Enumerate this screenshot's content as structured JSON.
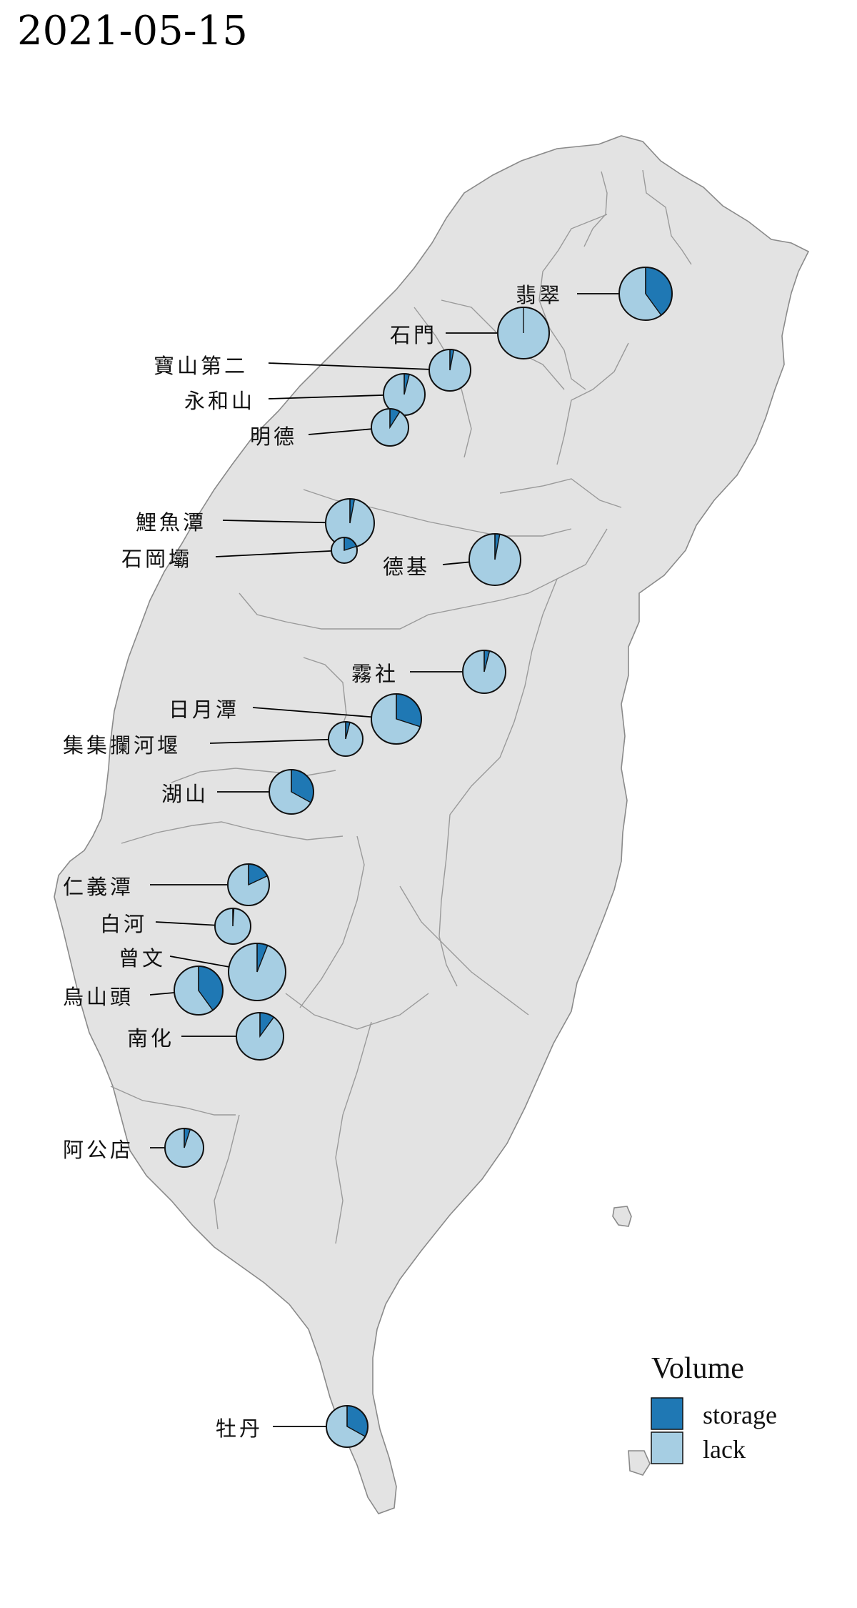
{
  "title": "2021-05-15",
  "legend": {
    "title": "Volume",
    "items": [
      {
        "label": "storage",
        "color": "#1f78b4"
      },
      {
        "label": "lack",
        "color": "#a6cee3"
      }
    ]
  },
  "reservoirs": [
    {
      "name": "翡翠",
      "storage_pct": 40
    },
    {
      "name": "石門",
      "storage_pct": 0
    },
    {
      "name": "寶山第二",
      "storage_pct": 3
    },
    {
      "name": "永和山",
      "storage_pct": 4
    },
    {
      "name": "明德",
      "storage_pct": 9
    },
    {
      "name": "鯉魚潭",
      "storage_pct": 3
    },
    {
      "name": "石岡壩",
      "storage_pct": 20
    },
    {
      "name": "德基",
      "storage_pct": 3
    },
    {
      "name": "霧社",
      "storage_pct": 4
    },
    {
      "name": "日月潭",
      "storage_pct": 30
    },
    {
      "name": "集集攔河堰",
      "storage_pct": 4
    },
    {
      "name": "湖山",
      "storage_pct": 33
    },
    {
      "name": "仁義潭",
      "storage_pct": 18
    },
    {
      "name": "白河",
      "storage_pct": 1
    },
    {
      "name": "曾文",
      "storage_pct": 6
    },
    {
      "name": "烏山頭",
      "storage_pct": 40
    },
    {
      "name": "南化",
      "storage_pct": 10
    },
    {
      "name": "阿公店",
      "storage_pct": 5
    },
    {
      "name": "牡丹",
      "storage_pct": 33
    }
  ]
}
